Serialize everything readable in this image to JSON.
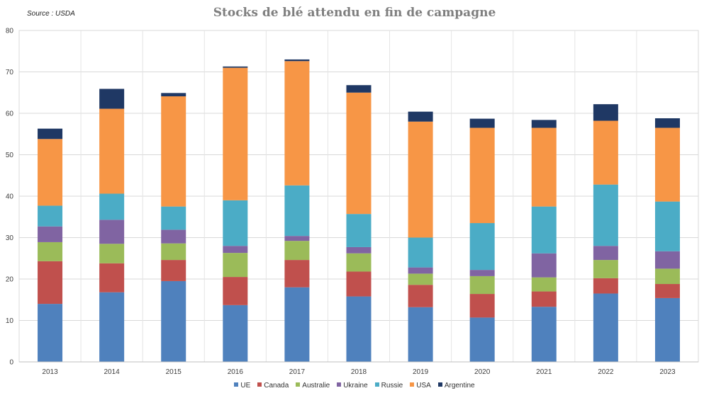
{
  "source_note": "Source : USDA",
  "chart_data": {
    "type": "bar",
    "stacked": true,
    "title": "Stocks de blé attendu en fin de campagne",
    "xlabel": "",
    "ylabel": "",
    "ylim": [
      0,
      80
    ],
    "yticks": [
      0,
      10,
      20,
      30,
      40,
      50,
      60,
      70,
      80
    ],
    "grid": true,
    "legend_position": "bottom",
    "categories": [
      "2013",
      "2014",
      "2015",
      "2016",
      "2017",
      "2018",
      "2019",
      "2020",
      "2021",
      "2022",
      "2023"
    ],
    "series": [
      {
        "name": "UE",
        "color": "#4f81bd",
        "values": [
          14.0,
          16.8,
          19.5,
          13.7,
          18.0,
          15.8,
          13.2,
          10.7,
          13.3,
          16.5,
          15.4
        ]
      },
      {
        "name": "Canada",
        "color": "#c0504d",
        "values": [
          10.3,
          7.0,
          5.1,
          6.8,
          6.6,
          6.0,
          5.4,
          5.7,
          3.7,
          3.7,
          3.4
        ]
      },
      {
        "name": "Australie",
        "color": "#9bbb59",
        "values": [
          4.6,
          4.7,
          4.0,
          5.8,
          4.6,
          4.4,
          2.7,
          4.3,
          3.4,
          4.4,
          3.7
        ]
      },
      {
        "name": "Ukraine",
        "color": "#8064a2",
        "values": [
          3.8,
          5.8,
          3.3,
          1.7,
          1.2,
          1.5,
          1.5,
          1.5,
          5.8,
          3.4,
          4.2
        ]
      },
      {
        "name": "Russie",
        "color": "#4bacc6",
        "values": [
          5.0,
          6.3,
          5.6,
          11.0,
          12.2,
          8.0,
          7.2,
          11.3,
          11.3,
          14.8,
          12.0
        ]
      },
      {
        "name": "USA",
        "color": "#f79646",
        "values": [
          16.1,
          20.5,
          26.6,
          32.0,
          30.0,
          29.3,
          28.0,
          23.0,
          19.0,
          15.4,
          17.8
        ]
      },
      {
        "name": "Argentine",
        "color": "#1f3864",
        "values": [
          2.5,
          4.8,
          0.8,
          0.3,
          0.4,
          1.8,
          2.4,
          2.2,
          1.9,
          4.0,
          2.3
        ]
      }
    ]
  }
}
